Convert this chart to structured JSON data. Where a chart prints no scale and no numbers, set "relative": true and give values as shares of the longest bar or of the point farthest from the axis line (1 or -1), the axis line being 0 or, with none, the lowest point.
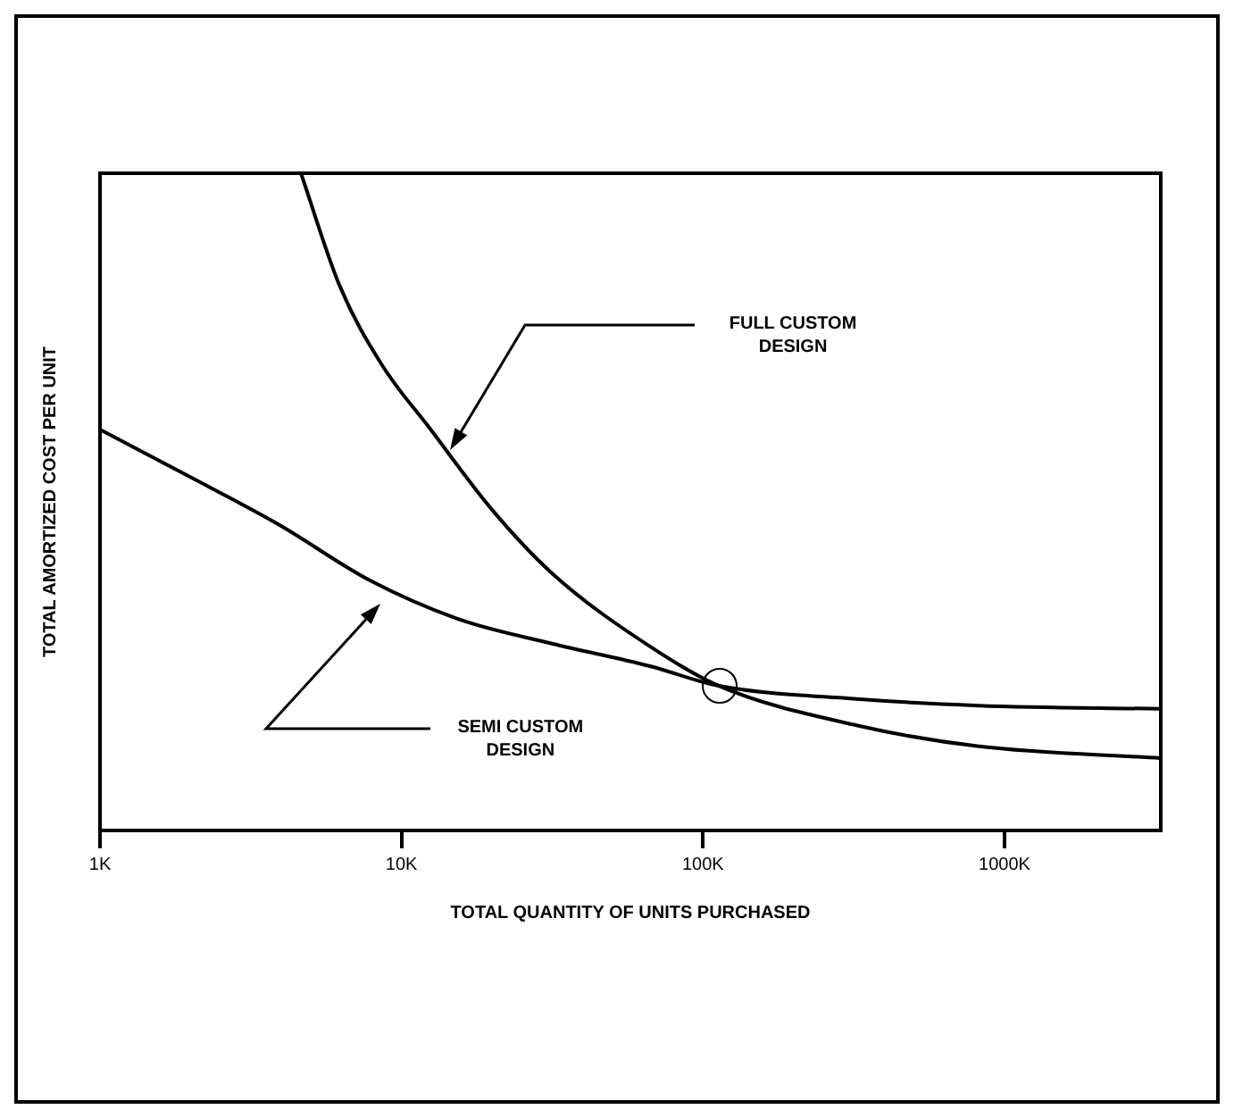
{
  "chart_data": {
    "type": "line",
    "xlabel": "TOTAL QUANTITY OF UNITS PURCHASED",
    "ylabel": "TOTAL AMORTIZED COST PER UNIT",
    "relative": true,
    "log": "x",
    "xlim": [
      1000,
      3300000
    ],
    "xticks": [
      {
        "value": 1000,
        "label": "1K"
      },
      {
        "value": 10000,
        "label": "10K"
      },
      {
        "value": 100000,
        "label": "100K"
      },
      {
        "value": 1000000,
        "label": "1000K"
      }
    ],
    "grid": false,
    "legend": false,
    "marker": "none",
    "line_style": "solid",
    "series": [
      {
        "color": "#000000",
        "x": [
          4640,
          6220,
          8570,
          12500,
          19800,
          31800,
          66700,
          113000,
          323000,
          822000,
          3300000
        ],
        "values": [
          1,
          0.83,
          0.71,
          0.61,
          0.49,
          0.39,
          0.28,
          0.22,
          0.16,
          0.128,
          0.11
        ]
      },
      {
        "color": "#000000",
        "x": [
          1000,
          1950,
          3930,
          7890,
          15800,
          31800,
          66700,
          113000,
          323000,
          822000,
          3300000
        ],
        "values": [
          0.61,
          0.54,
          0.465,
          0.38,
          0.32,
          0.284,
          0.25,
          0.22,
          0.2,
          0.19,
          0.185
        ]
      }
    ],
    "annotations": [
      "FULL CUSTOM\nDESIGN",
      "SEMI CUSTOM\nDESIGN"
    ]
  }
}
